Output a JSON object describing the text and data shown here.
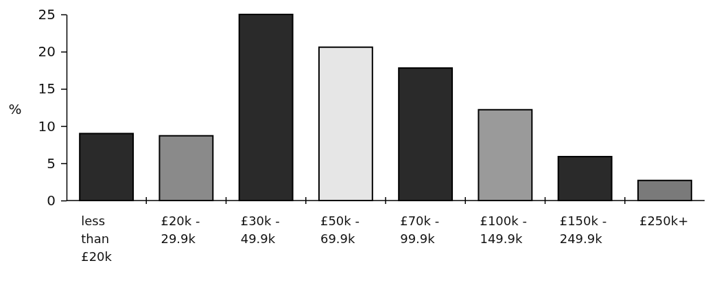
{
  "chart_data": {
    "type": "bar",
    "ylabel": "%",
    "categories": [
      "less than £20k",
      "£20k - 29.9k",
      "£30k - 49.9k",
      "£50k - 69.9k",
      "£70k - 99.9k",
      "£100k - 149.9k",
      "£150k - 249.9k",
      "£250k+"
    ],
    "values": [
      9.0,
      8.7,
      25.0,
      20.6,
      17.8,
      12.2,
      5.9,
      2.7
    ],
    "colors": [
      "#2a2a2a",
      "#8a8a8a",
      "#2a2a2a",
      "#e6e6e6",
      "#2a2a2a",
      "#9a9a9a",
      "#2a2a2a",
      "#7a7a7a"
    ],
    "ylim": [
      0,
      25
    ],
    "yticks": [
      0,
      5,
      10,
      15,
      20,
      25
    ],
    "grid": false
  }
}
